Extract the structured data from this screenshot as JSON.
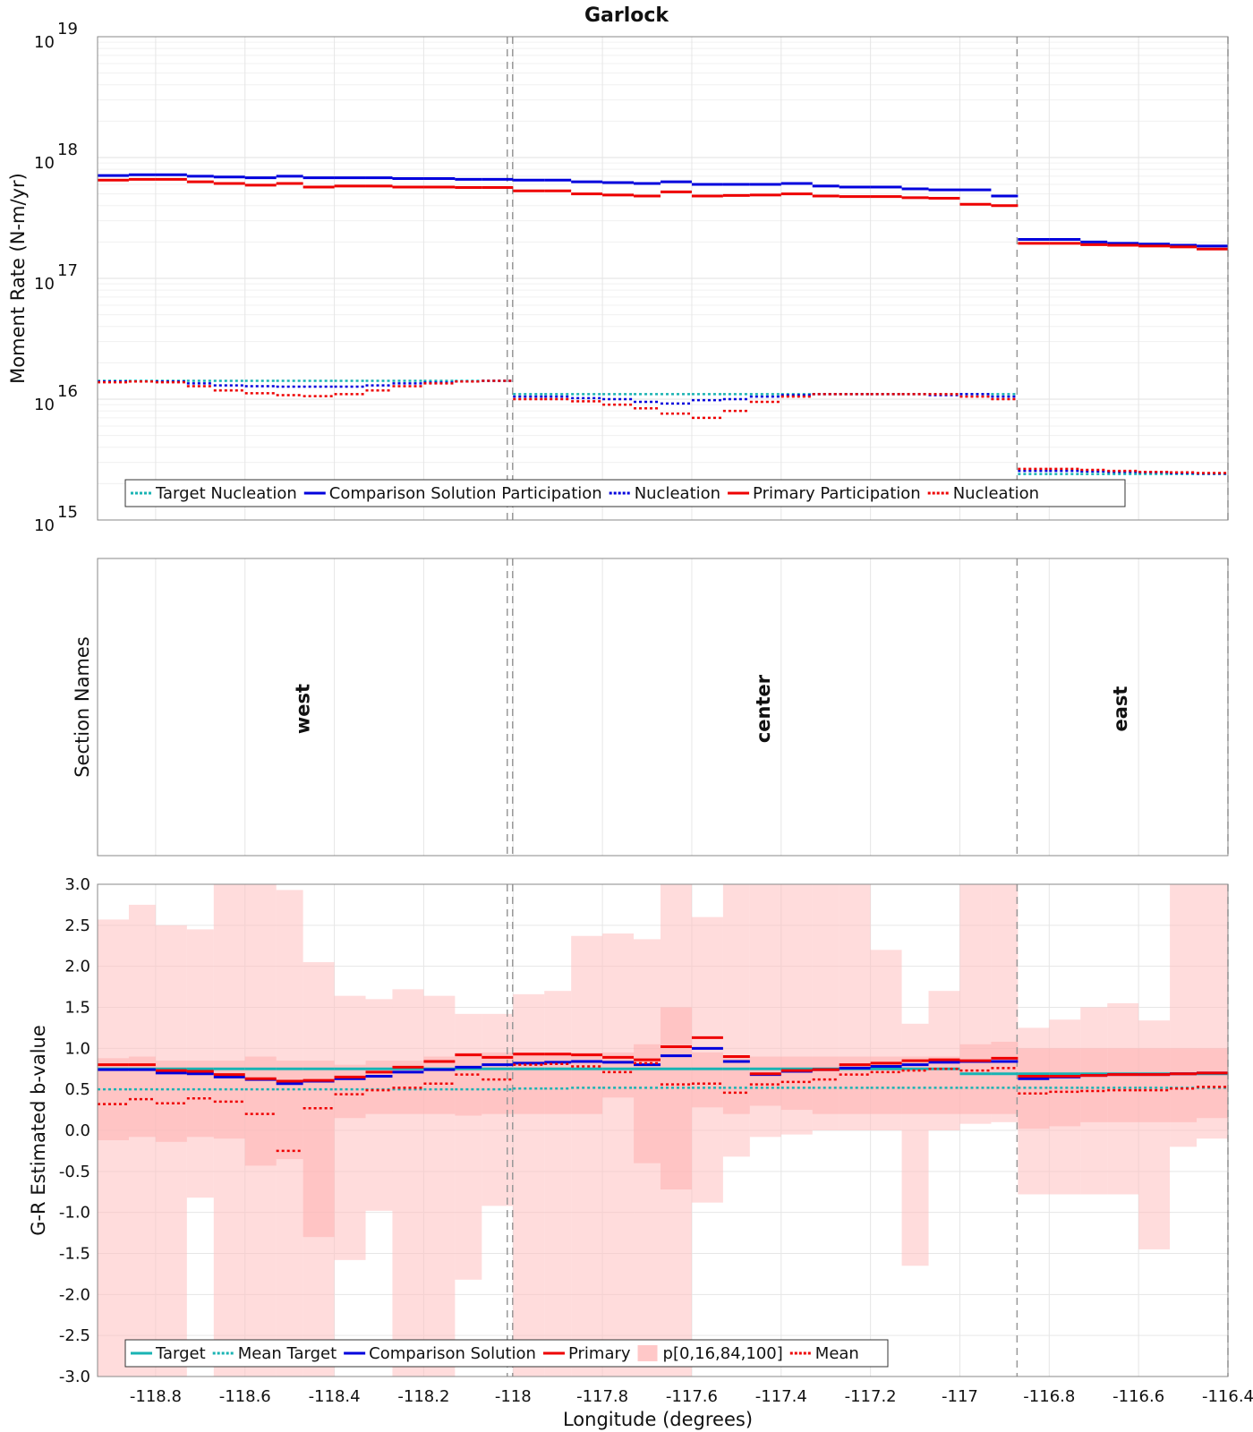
{
  "chart_data": {
    "type": "line",
    "title": "Garlock",
    "xlabel": "Longitude (degrees)",
    "xlim": [
      -118.93,
      -116.4
    ],
    "xticks": [
      -118.8,
      -118.6,
      -118.4,
      -118.2,
      -118,
      -117.8,
      -117.6,
      -117.4,
      -117.2,
      -117,
      -116.8,
      -116.6,
      -116.4
    ],
    "xtick_labels": [
      "-118.8",
      "-118.6",
      "-118.4",
      "-118.2",
      "-118",
      "-117.8",
      "-117.6",
      "-117.4",
      "-117.2",
      "-117",
      "-116.8",
      "-116.6",
      "-116.4"
    ],
    "section_boundaries": [
      -118.013,
      -118.001,
      -116.872,
      -116.4
    ],
    "panels": [
      {
        "name": "moment-rate",
        "ylabel": "Moment Rate (N-m/yr)",
        "yscale": "log",
        "ylim": [
          1000000000000000.0,
          1e+19
        ],
        "ytick_exponents": [
          "15",
          "16",
          "17",
          "18",
          "19"
        ],
        "ytick_base": "10",
        "legend": [
          "Target Nucleation",
          "Comparison Solution Participation",
          "Nucleation",
          "Primary Participation",
          "Nucleation"
        ],
        "legend_styles": [
          {
            "color": "#19b3b3",
            "dash": "dot"
          },
          {
            "color": "#0000dd",
            "dash": "solid"
          },
          {
            "color": "#0000dd",
            "dash": "dot"
          },
          {
            "color": "#ee0000",
            "dash": "solid"
          },
          {
            "color": "#ee0000",
            "dash": "dot"
          }
        ],
        "x_edges": [
          -118.93,
          -118.86,
          -118.8,
          -118.73,
          -118.67,
          -118.6,
          -118.53,
          -118.47,
          -118.4,
          -118.33,
          -118.27,
          -118.2,
          -118.13,
          -118.07,
          -118.0,
          -117.93,
          -117.87,
          -117.8,
          -117.73,
          -117.67,
          -117.6,
          -117.53,
          -117.47,
          -117.4,
          -117.33,
          -117.27,
          -117.2,
          -117.13,
          -117.07,
          -117.0,
          -116.93,
          -116.87,
          -116.8,
          -116.73,
          -116.67,
          -116.6,
          -116.53,
          -116.47,
          -116.4
        ],
        "series": [
          {
            "name": "Target Nucleation",
            "color": "#19b3b3",
            "dash": "dot",
            "values": [
              1.42e+16,
              1.42e+16,
              1.42e+16,
              1.42e+16,
              1.42e+16,
              1.42e+16,
              1.42e+16,
              1.42e+16,
              1.42e+16,
              1.42e+16,
              1.42e+16,
              1.42e+16,
              1.42e+16,
              1.42e+16,
              1.1e+16,
              1.1e+16,
              1.1e+16,
              1.1e+16,
              1.1e+16,
              1.1e+16,
              1.1e+16,
              1.1e+16,
              1.1e+16,
              1.1e+16,
              1.1e+16,
              1.1e+16,
              1.1e+16,
              1.1e+16,
              1.1e+16,
              1.1e+16,
              1.1e+16,
              2400000000000000.0,
              2400000000000000.0,
              2400000000000000.0,
              2400000000000000.0,
              2400000000000000.0,
              2400000000000000.0,
              2400000000000000.0
            ]
          },
          {
            "name": "Comparison Solution Participation",
            "color": "#0000dd",
            "dash": "solid",
            "values": [
              7.1e+17,
              7.2e+17,
              7.2e+17,
              7e+17,
              6.9e+17,
              6.8e+17,
              7e+17,
              6.8e+17,
              6.8e+17,
              6.8e+17,
              6.7e+17,
              6.7e+17,
              6.6e+17,
              6.6e+17,
              6.5e+17,
              6.5e+17,
              6.3e+17,
              6.2e+17,
              6.1e+17,
              6.3e+17,
              6e+17,
              6e+17,
              6e+17,
              6.1e+17,
              5.8e+17,
              5.7e+17,
              5.7e+17,
              5.5e+17,
              5.4e+17,
              5.4e+17,
              4.8e+17,
              2.1e+17,
              2.1e+17,
              2e+17,
              1.95e+17,
              1.92e+17,
              1.88e+17,
              1.85e+17
            ]
          },
          {
            "name": "Nucleation",
            "color": "#0000dd",
            "dash": "dot",
            "values": [
              1.4e+16,
              1.4e+16,
              1.4e+16,
              1.35e+16,
              1.3e+16,
              1.28e+16,
              1.27e+16,
              1.27e+16,
              1.27e+16,
              1.3e+16,
              1.35e+16,
              1.37e+16,
              1.4e+16,
              1.42e+16,
              1.05e+16,
              1.05e+16,
              1.02e+16,
              1e+16,
              9500000000000000.0,
              9200000000000000.0,
              9800000000000000.0,
              1e+16,
              1.05e+16,
              1.08e+16,
              1.1e+16,
              1.1e+16,
              1.1e+16,
              1.1e+16,
              1.08e+16,
              1.1e+16,
              1.05e+16,
              2550000000000000.0,
              2550000000000000.0,
              2520000000000000.0,
              2500000000000000.0,
              2480000000000000.0,
              2450000000000000.0,
              2420000000000000.0
            ]
          },
          {
            "name": "Primary Participation",
            "color": "#ee0000",
            "dash": "solid",
            "values": [
              6.5e+17,
              6.6e+17,
              6.6e+17,
              6.3e+17,
              6.1e+17,
              5.9e+17,
              6.1e+17,
              5.7e+17,
              5.8e+17,
              5.8e+17,
              5.7e+17,
              5.7e+17,
              5.65e+17,
              5.65e+17,
              5.3e+17,
              5.3e+17,
              5e+17,
              4.9e+17,
              4.8e+17,
              5.2e+17,
              4.8e+17,
              4.85e+17,
              4.9e+17,
              5e+17,
              4.8e+17,
              4.75e+17,
              4.75e+17,
              4.65e+17,
              4.6e+17,
              4.1e+17,
              4e+17,
              1.95e+17,
              1.95e+17,
              1.9e+17,
              1.88e+17,
              1.85e+17,
              1.82e+17,
              1.75e+17
            ]
          },
          {
            "name": "Nucleation",
            "color": "#ee0000",
            "dash": "dot",
            "values": [
              1.38e+16,
              1.4e+16,
              1.38e+16,
              1.28e+16,
              1.18e+16,
              1.12e+16,
              1.08e+16,
              1.06e+16,
              1.1e+16,
              1.18e+16,
              1.28e+16,
              1.35e+16,
              1.4e+16,
              1.42e+16,
              1e+16,
              1e+16,
              9600000000000000.0,
              9000000000000000.0,
              8400000000000000.0,
              7600000000000000.0,
              7000000000000000.0,
              8000000000000000.0,
              9500000000000000.0,
              1.05e+16,
              1.1e+16,
              1.1e+16,
              1.1e+16,
              1.1e+16,
              1.1e+16,
              1.05e+16,
              1e+16,
              2650000000000000.0,
              2650000000000000.0,
              2600000000000000.0,
              2550000000000000.0,
              2500000000000000.0,
              2480000000000000.0,
              2450000000000000.0
            ]
          }
        ]
      },
      {
        "name": "section-names",
        "ylabel": "Section Names",
        "sections": [
          {
            "name": "west",
            "x": -118.47
          },
          {
            "name": "center",
            "x": -117.44
          },
          {
            "name": "east",
            "x": -116.64
          }
        ]
      },
      {
        "name": "b-value",
        "ylabel": "G-R Estimated b-value",
        "yscale": "linear",
        "ylim": [
          -3.0,
          3.0
        ],
        "yticks": [
          3.0,
          2.5,
          2.0,
          1.5,
          1.0,
          0.5,
          0.0,
          -0.5,
          -1.0,
          -1.5,
          -2.0,
          -2.5,
          -3.0
        ],
        "ytick_labels": [
          "3.0",
          "2.5",
          "2.0",
          "1.5",
          "1.0",
          "0.5",
          "0.0",
          "-0.5",
          "-1.0",
          "-1.5",
          "-2.0",
          "-2.5",
          "-3.0"
        ],
        "legend": [
          "Target",
          "Mean Target",
          "Comparison Solution",
          "Primary",
          "p[0,16,84,100]",
          "Mean"
        ],
        "legend_styles": [
          {
            "color": "#19b3b3",
            "dash": "solid"
          },
          {
            "color": "#19b3b3",
            "dash": "dot"
          },
          {
            "color": "#0000dd",
            "dash": "solid"
          },
          {
            "color": "#ee0000",
            "dash": "solid"
          },
          {
            "color": "#ffc8c8",
            "dash": "fill"
          },
          {
            "color": "#ee0000",
            "dash": "dot"
          }
        ],
        "x_edges": [
          -118.93,
          -118.86,
          -118.8,
          -118.73,
          -118.67,
          -118.6,
          -118.53,
          -118.47,
          -118.4,
          -118.33,
          -118.27,
          -118.2,
          -118.13,
          -118.07,
          -118.0,
          -117.93,
          -117.87,
          -117.8,
          -117.73,
          -117.67,
          -117.6,
          -117.53,
          -117.47,
          -117.4,
          -117.33,
          -117.27,
          -117.2,
          -117.13,
          -117.07,
          -117.0,
          -116.93,
          -116.87,
          -116.8,
          -116.73,
          -116.67,
          -116.6,
          -116.53,
          -116.47,
          -116.4
        ],
        "band_outer": {
          "lower": [
            -3.0,
            -3.0,
            -3.0,
            -0.82,
            -3.0,
            -3.0,
            -3.0,
            -3.0,
            -1.58,
            -0.98,
            -3.0,
            -3.0,
            -1.82,
            -0.92,
            -3.0,
            -3.0,
            -3.0,
            -3.0,
            -3.0,
            -3.0,
            -0.88,
            -0.32,
            -0.08,
            -0.05,
            0.0,
            0.0,
            0.0,
            -1.65,
            0.0,
            0.08,
            0.1,
            -0.78,
            -0.78,
            -0.78,
            -0.78,
            -1.45,
            -0.2,
            -0.1
          ],
          "upper": [
            2.57,
            2.75,
            2.5,
            2.45,
            3.0,
            3.0,
            2.93,
            2.05,
            1.64,
            1.6,
            1.72,
            1.64,
            1.42,
            1.42,
            1.66,
            1.7,
            2.37,
            2.4,
            2.33,
            3.0,
            2.6,
            3.0,
            3.0,
            3.0,
            3.0,
            3.0,
            2.2,
            1.3,
            1.7,
            3.0,
            3.0,
            1.25,
            1.35,
            1.5,
            1.55,
            1.34,
            3.0,
            3.0
          ]
        },
        "band_inner": {
          "lower": [
            -0.12,
            -0.08,
            -0.14,
            -0.08,
            -0.1,
            -0.43,
            -0.35,
            -1.3,
            0.15,
            0.2,
            0.2,
            0.2,
            0.18,
            0.2,
            0.2,
            0.2,
            0.2,
            0.4,
            -0.4,
            -0.72,
            0.28,
            0.2,
            0.3,
            0.25,
            0.2,
            0.2,
            0.2,
            0.2,
            0.2,
            0.2,
            0.2,
            0.02,
            0.05,
            0.1,
            0.1,
            0.1,
            0.1,
            0.15
          ],
          "upper": [
            0.88,
            0.9,
            0.85,
            0.85,
            0.85,
            0.9,
            0.85,
            0.85,
            0.8,
            0.85,
            0.85,
            0.9,
            0.95,
            0.95,
            0.95,
            0.95,
            0.95,
            0.95,
            1.05,
            1.5,
            0.95,
            0.9,
            0.9,
            0.9,
            0.9,
            0.9,
            0.9,
            0.9,
            0.9,
            1.05,
            1.08,
            1.0,
            1.0,
            1.0,
            1.0,
            1.0,
            1.0,
            1.0
          ]
        },
        "series": [
          {
            "name": "Target",
            "color": "#19b3b3",
            "dash": "solid",
            "values": [
              0.75,
              0.75,
              0.75,
              0.75,
              0.75,
              0.75,
              0.75,
              0.75,
              0.75,
              0.75,
              0.75,
              0.75,
              0.75,
              0.75,
              0.75,
              0.75,
              0.75,
              0.75,
              0.75,
              0.75,
              0.75,
              0.75,
              0.75,
              0.75,
              0.75,
              0.75,
              0.75,
              0.75,
              0.75,
              0.69,
              0.69,
              0.69,
              0.69,
              0.69,
              0.69,
              0.69,
              0.69,
              0.69
            ]
          },
          {
            "name": "Mean Target",
            "color": "#19b3b3",
            "dash": "dot",
            "values": [
              0.5,
              0.5,
              0.5,
              0.5,
              0.5,
              0.5,
              0.5,
              0.5,
              0.5,
              0.5,
              0.5,
              0.5,
              0.5,
              0.5,
              0.51,
              0.51,
              0.52,
              0.52,
              0.52,
              0.52,
              0.52,
              0.52,
              0.52,
              0.52,
              0.52,
              0.52,
              0.52,
              0.52,
              0.52,
              0.52,
              0.52,
              0.52,
              0.52,
              0.52,
              0.52,
              0.52,
              0.52,
              0.52
            ]
          },
          {
            "name": "Comparison Solution",
            "color": "#0000dd",
            "dash": "solid",
            "values": [
              0.74,
              0.74,
              0.7,
              0.69,
              0.65,
              0.62,
              0.57,
              0.6,
              0.63,
              0.66,
              0.71,
              0.74,
              0.77,
              0.8,
              0.82,
              0.83,
              0.84,
              0.83,
              0.8,
              0.91,
              1.0,
              0.84,
              0.68,
              0.72,
              0.74,
              0.76,
              0.78,
              0.8,
              0.83,
              0.84,
              0.84,
              0.63,
              0.65,
              0.67,
              0.68,
              0.68,
              0.69,
              0.7
            ]
          },
          {
            "name": "Primary",
            "color": "#ee0000",
            "dash": "solid",
            "values": [
              0.8,
              0.8,
              0.73,
              0.72,
              0.68,
              0.63,
              0.6,
              0.61,
              0.65,
              0.71,
              0.77,
              0.84,
              0.92,
              0.89,
              0.93,
              0.93,
              0.92,
              0.89,
              0.86,
              1.02,
              1.13,
              0.9,
              0.69,
              0.73,
              0.74,
              0.8,
              0.82,
              0.85,
              0.86,
              0.85,
              0.88,
              0.66,
              0.66,
              0.67,
              0.68,
              0.68,
              0.69,
              0.7
            ]
          },
          {
            "name": "Mean",
            "color": "#ee0000",
            "dash": "dot",
            "values": [
              0.32,
              0.38,
              0.33,
              0.39,
              0.35,
              0.2,
              -0.25,
              0.27,
              0.44,
              0.49,
              0.52,
              0.57,
              0.68,
              0.62,
              0.8,
              0.81,
              0.78,
              0.71,
              0.82,
              0.56,
              0.57,
              0.46,
              0.56,
              0.59,
              0.62,
              0.68,
              0.71,
              0.73,
              0.75,
              0.73,
              0.76,
              0.45,
              0.47,
              0.48,
              0.49,
              0.49,
              0.51,
              0.53
            ]
          }
        ]
      }
    ]
  }
}
